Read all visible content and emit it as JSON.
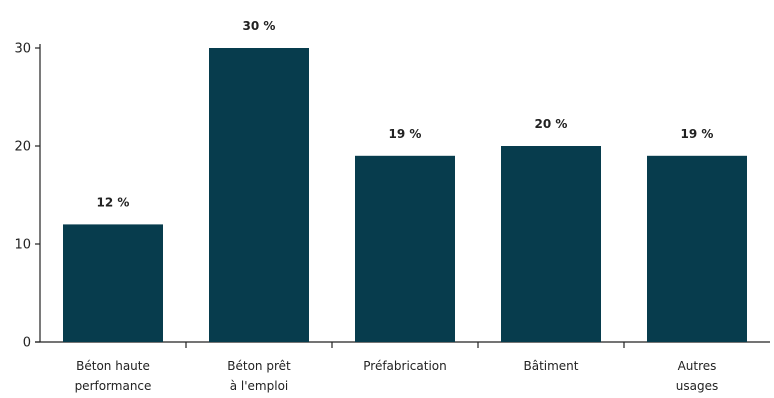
{
  "chart_data": {
    "type": "bar",
    "categories": [
      [
        "Béton haute",
        "performance"
      ],
      [
        "Béton prêt",
        "à l'emploi"
      ],
      [
        "Préfabrication"
      ],
      [
        "Bâtiment"
      ],
      [
        "Autres",
        "usages"
      ]
    ],
    "values": [
      12,
      30,
      19,
      20,
      19
    ],
    "data_labels": [
      "12 %",
      "30 %",
      "19 %",
      "20 %",
      "19 %"
    ],
    "y_ticks": [
      0,
      10,
      20,
      30
    ],
    "ylim": [
      0,
      30
    ],
    "grid": false,
    "bar_color": "#073c4d"
  }
}
